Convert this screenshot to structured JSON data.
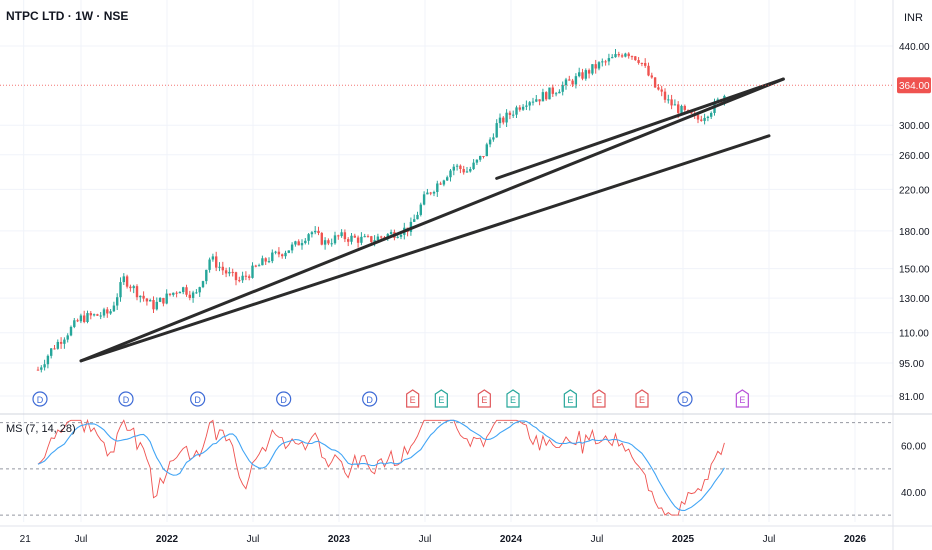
{
  "header": {
    "symbol_title": "NTPC LTD · 1W · NSE",
    "currency": "INR"
  },
  "colors": {
    "up": "#26a69a",
    "down": "#ef5350",
    "trendline": "#2b2b2b",
    "indicator_fast": "#ef5350",
    "indicator_slow": "#42a5f5",
    "event_div": "#3d6ad6",
    "event_earn": "#e0575b",
    "event_split": "#26a69a",
    "event_future": "#b74fd8",
    "price_label_bg": "#ef5350"
  },
  "price_pane": {
    "last_price_label": "364.00",
    "y_ticks": [
      "440.00",
      "364.00",
      "300.00",
      "260.00",
      "220.00",
      "180.00",
      "150.00",
      "130.00",
      "110.00",
      "95.00",
      "81.00"
    ]
  },
  "indicator": {
    "label": "MS (7, 14, 28)",
    "y_ticks": [
      "60.00",
      "40.00"
    ]
  },
  "x_axis": {
    "ticks": [
      "21",
      "Jul",
      "2022",
      "Jul",
      "2023",
      "Jul",
      "2024",
      "Jul",
      "2025",
      "Jul",
      "2026"
    ]
  },
  "events": [
    {
      "type": "D",
      "label": "D"
    },
    {
      "type": "D",
      "label": "D"
    },
    {
      "type": "D",
      "label": "D"
    },
    {
      "type": "D",
      "label": "D"
    },
    {
      "type": "D",
      "label": "D"
    },
    {
      "type": "E",
      "label": "E"
    },
    {
      "type": "S",
      "label": "E"
    },
    {
      "type": "E",
      "label": "E"
    },
    {
      "type": "S",
      "label": "E"
    },
    {
      "type": "S",
      "label": "E"
    },
    {
      "type": "E",
      "label": "E"
    },
    {
      "type": "E",
      "label": "E"
    },
    {
      "type": "D",
      "label": "D"
    },
    {
      "type": "F",
      "label": "E"
    }
  ],
  "chart_data": {
    "type": "candlestick",
    "scale": "log",
    "y_range": [
      78,
      520
    ],
    "anchors": [
      [
        "2021-04",
        92
      ],
      [
        "2021-05",
        102
      ],
      [
        "2021-07",
        118
      ],
      [
        "2021-09",
        121
      ],
      [
        "2021-10",
        143
      ],
      [
        "2021-11",
        133
      ],
      [
        "2021-12",
        125
      ],
      [
        "2022-02",
        137
      ],
      [
        "2022-03",
        131
      ],
      [
        "2022-04",
        158
      ],
      [
        "2022-05",
        148
      ],
      [
        "2022-06",
        141
      ],
      [
        "2022-08",
        157
      ],
      [
        "2022-10",
        168
      ],
      [
        "2022-11",
        180
      ],
      [
        "2022-12",
        170
      ],
      [
        "2023-01",
        175
      ],
      [
        "2023-03",
        172
      ],
      [
        "2023-04",
        175
      ],
      [
        "2023-06",
        183
      ],
      [
        "2023-07",
        212
      ],
      [
        "2023-09",
        246
      ],
      [
        "2023-10",
        240
      ],
      [
        "2023-11",
        258
      ],
      [
        "2023-12",
        300
      ],
      [
        "2024-01",
        318
      ],
      [
        "2024-02",
        338
      ],
      [
        "2024-03",
        343
      ],
      [
        "2024-04",
        355
      ],
      [
        "2024-06",
        382
      ],
      [
        "2024-07",
        400
      ],
      [
        "2024-08",
        412
      ],
      [
        "2024-09",
        430
      ],
      [
        "2024-10",
        412
      ],
      [
        "2024-11",
        362
      ],
      [
        "2024-12",
        335
      ],
      [
        "2025-01",
        320
      ],
      [
        "2025-02",
        308
      ],
      [
        "2025-03",
        325
      ],
      [
        "2025-04",
        350
      ],
      [
        "2025-04",
        364
      ]
    ],
    "trendlines": [
      {
        "from": [
          "2021-07",
          96
        ],
        "to": [
          "2025-08",
          375
        ]
      },
      {
        "from": [
          "2023-12",
          232
        ],
        "to": [
          "2025-08",
          375
        ]
      },
      {
        "from": [
          "2021-07",
          96
        ],
        "to": [
          "2025-07",
          285
        ]
      }
    ],
    "indicator_ylim": [
      27,
      72
    ],
    "indicator_dashed_levels": [
      70,
      50,
      30
    ]
  }
}
